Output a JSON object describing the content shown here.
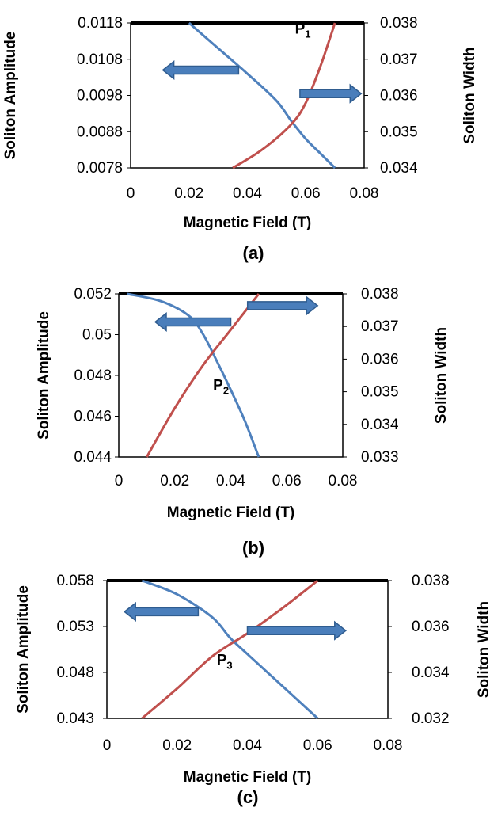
{
  "colors": {
    "amplitude": "#4F81BD",
    "width": "#C0504D",
    "arrow_fill": "#4A7EBB",
    "arrow_stroke": "#2F5C8F"
  },
  "chart_data": [
    {
      "type": "line",
      "caption": "(a)",
      "xlabel": "Magnetic Field (T)",
      "ylabel_left": "Soliton Amplitude",
      "ylabel_right": "Soliton Width",
      "xlim": [
        0,
        0.08
      ],
      "xticks": [
        "0",
        "0.02",
        "0.04",
        "0.06",
        "0.08"
      ],
      "ylim_left": [
        0.0078,
        0.0118
      ],
      "yticks_left": [
        "0.0078",
        "0.0088",
        "0.0098",
        "0.0108",
        "0.0118"
      ],
      "ylim_right": [
        0.034,
        0.038
      ],
      "yticks_right": [
        "0.034",
        "0.035",
        "0.036",
        "0.037",
        "0.038"
      ],
      "point_label": {
        "main": "P",
        "sub": "1",
        "x": 0.059,
        "y_left": 0.0115
      },
      "series": [
        {
          "axis": "left",
          "color": "amplitude",
          "x": [
            0.02,
            0.03,
            0.04,
            0.05,
            0.055,
            0.06,
            0.065,
            0.07
          ],
          "y": [
            0.0118,
            0.0111,
            0.0104,
            0.00965,
            0.0091,
            0.0086,
            0.0082,
            0.0078
          ]
        },
        {
          "axis": "right",
          "color": "width",
          "x": [
            0.035,
            0.045,
            0.055,
            0.06,
            0.065,
            0.07
          ],
          "y": [
            0.034,
            0.0345,
            0.0352,
            0.0358,
            0.0368,
            0.038
          ]
        }
      ],
      "arrows": [
        {
          "direction": "left",
          "x1": 0.011,
          "x2": 0.037,
          "y_left": 0.0105
        },
        {
          "direction": "right",
          "x1": 0.058,
          "x2": 0.079,
          "y_left": 0.00985
        }
      ]
    },
    {
      "type": "line",
      "caption": "(b)",
      "xlabel": "Magnetic Field (T)",
      "ylabel_left": "Soliton Amplitude",
      "ylabel_right": "Soliton Width",
      "xlim": [
        0,
        0.08
      ],
      "xticks": [
        "0",
        "0.02",
        "0.04",
        "0.06",
        "0.08"
      ],
      "ylim_left": [
        0.044,
        0.053
      ],
      "yticks_left": [
        "0.044",
        "0.046",
        "0.048",
        "0.05",
        "0.052"
      ],
      "ylim_right": [
        0.033,
        0.038
      ],
      "yticks_right": [
        "0.033",
        "0.034",
        "0.035",
        "0.036",
        "0.037",
        "0.038"
      ],
      "point_label": {
        "main": "P",
        "sub": "2",
        "x": 0.0365,
        "y_left": 0.0477
      },
      "series": [
        {
          "axis": "left",
          "color": "amplitude",
          "x": [
            0.003,
            0.015,
            0.025,
            0.03,
            0.035,
            0.04,
            0.045,
            0.05
          ],
          "y": [
            0.053,
            0.0526,
            0.0518,
            0.0508,
            0.0493,
            0.0477,
            0.046,
            0.044
          ]
        },
        {
          "axis": "right",
          "color": "width",
          "x": [
            0.01,
            0.02,
            0.03,
            0.04,
            0.05
          ],
          "y": [
            0.033,
            0.0345,
            0.0358,
            0.0369,
            0.038
          ]
        }
      ],
      "arrows": [
        {
          "direction": "left",
          "x1": 0.013,
          "x2": 0.04,
          "y_left": 0.05145
        },
        {
          "direction": "right",
          "x1": 0.046,
          "x2": 0.071,
          "y_left": 0.05235
        }
      ]
    },
    {
      "type": "line",
      "caption": "(c)",
      "xlabel": "Magnetic Field (T)",
      "ylabel_left": "Soliton Amplitude",
      "ylabel_right": "Soliton Width",
      "xlim": [
        0,
        0.08
      ],
      "xticks": [
        "0",
        "0.02",
        "0.04",
        "0.06",
        "0.08"
      ],
      "ylim_left": [
        0.043,
        0.058
      ],
      "yticks_left": [
        "0.043",
        "0.048",
        "0.053",
        "0.058"
      ],
      "ylim_right": [
        0.032,
        0.038
      ],
      "yticks_right": [
        "0.032",
        "0.034",
        "0.036",
        "0.038"
      ],
      "point_label": {
        "main": "P",
        "sub": "3",
        "x": 0.0335,
        "y_left": 0.0488
      },
      "series": [
        {
          "axis": "left",
          "color": "amplitude",
          "x": [
            0.01,
            0.02,
            0.03,
            0.035,
            0.04,
            0.05,
            0.06
          ],
          "y": [
            0.058,
            0.0565,
            0.054,
            0.0518,
            0.05,
            0.0465,
            0.043
          ]
        },
        {
          "axis": "right",
          "color": "width",
          "x": [
            0.01,
            0.02,
            0.03,
            0.04,
            0.05,
            0.06
          ],
          "y": [
            0.032,
            0.0333,
            0.0347,
            0.0357,
            0.0368,
            0.038
          ]
        }
      ],
      "arrows": [
        {
          "direction": "left",
          "x1": 0.005,
          "x2": 0.026,
          "y_left": 0.0546
        },
        {
          "direction": "right",
          "x1": 0.04,
          "x2": 0.068,
          "y_left": 0.05255
        }
      ]
    }
  ]
}
